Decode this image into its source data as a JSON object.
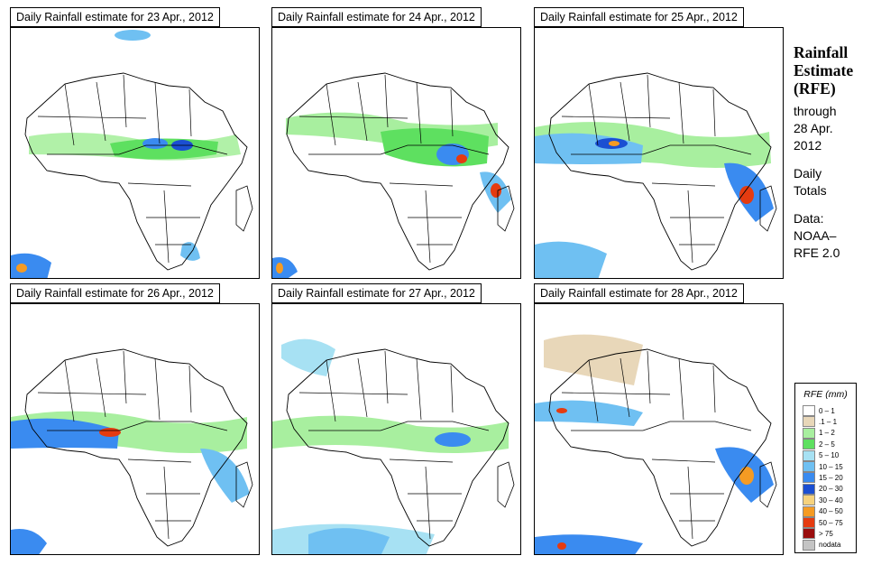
{
  "panels": [
    {
      "title": "Daily Rainfall estimate for  23 Apr., 2012"
    },
    {
      "title": "Daily Rainfall estimate for  24 Apr., 2012"
    },
    {
      "title": "Daily Rainfall estimate for  25 Apr., 2012"
    },
    {
      "title": "Daily Rainfall estimate for  26 Apr., 2012"
    },
    {
      "title": "Daily Rainfall estimate for  27 Apr., 2012"
    },
    {
      "title": "Daily Rainfall estimate for  28 Apr., 2012"
    }
  ],
  "side": {
    "title_line1": "Rainfall",
    "title_line2": "Estimate",
    "title_line3": "(RFE)",
    "through_label": "through",
    "through_date1": "28 Apr.",
    "through_date2": "2012",
    "totals_line1": "Daily",
    "totals_line2": "Totals",
    "data_line1": "Data:",
    "data_line2": "NOAA–",
    "data_line3": "RFE 2.0"
  },
  "legend": {
    "title": "RFE (mm)",
    "items": [
      {
        "label": "0 – 1",
        "color": "#ffffff"
      },
      {
        "label": ".1 – 1",
        "color": "#e8d7b9"
      },
      {
        "label": "1 – 2",
        "color": "#a8ef9f"
      },
      {
        "label": "2 – 5",
        "color": "#5ee060"
      },
      {
        "label": "5 – 10",
        "color": "#a7e1f3"
      },
      {
        "label": "10 – 15",
        "color": "#6fc0f2"
      },
      {
        "label": "15 – 20",
        "color": "#3a8bf0"
      },
      {
        "label": "20 – 30",
        "color": "#1b4fd2"
      },
      {
        "label": "30 – 40",
        "color": "#f6d27d"
      },
      {
        "label": "40 – 50",
        "color": "#f59b23"
      },
      {
        "label": "50 – 75",
        "color": "#e53b10"
      },
      {
        "label": "> 75",
        "color": "#9a0d0d"
      },
      {
        "label": "nodata",
        "color": "#c4c4c4"
      }
    ]
  }
}
